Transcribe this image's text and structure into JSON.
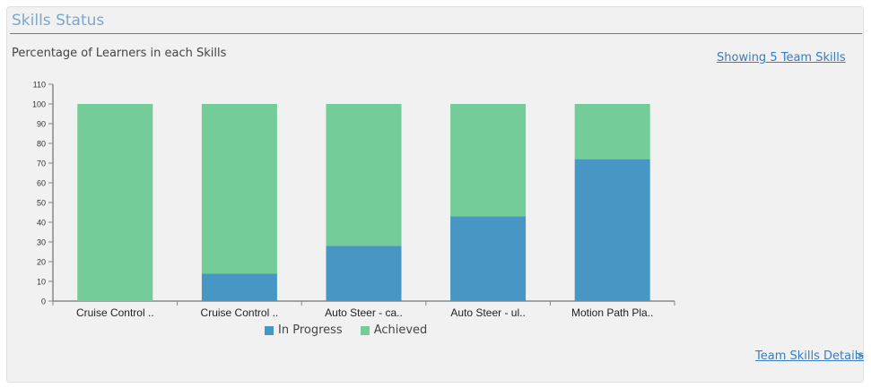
{
  "panel": {
    "title": "Skills Status",
    "subtitle": "Percentage of Learners in each Skills",
    "showing_link": "Showing 5 Team Skills",
    "details_link": "Team Skills Details",
    "details_arrow": ">"
  },
  "colors": {
    "in_progress": "#4796c4",
    "achieved": "#74cc99",
    "title": "#7aa7cf",
    "link": "#3a7cc0"
  },
  "chart_data": {
    "type": "bar",
    "stacked": true,
    "categories": [
      "Cruise Control ..",
      "Cruise Control ..",
      "Auto Steer - ca..",
      "Auto Steer - ul..",
      "Motion Path Pla.."
    ],
    "series": [
      {
        "name": "In Progress",
        "values": [
          0,
          14,
          28,
          43,
          72
        ]
      },
      {
        "name": "Achieved",
        "values": [
          100,
          86,
          72,
          57,
          28
        ]
      }
    ],
    "ylim": [
      0,
      110
    ],
    "yticks": [
      0,
      10,
      20,
      30,
      40,
      50,
      60,
      70,
      80,
      90,
      100,
      110
    ],
    "grid": false,
    "legend_position": "bottom"
  }
}
